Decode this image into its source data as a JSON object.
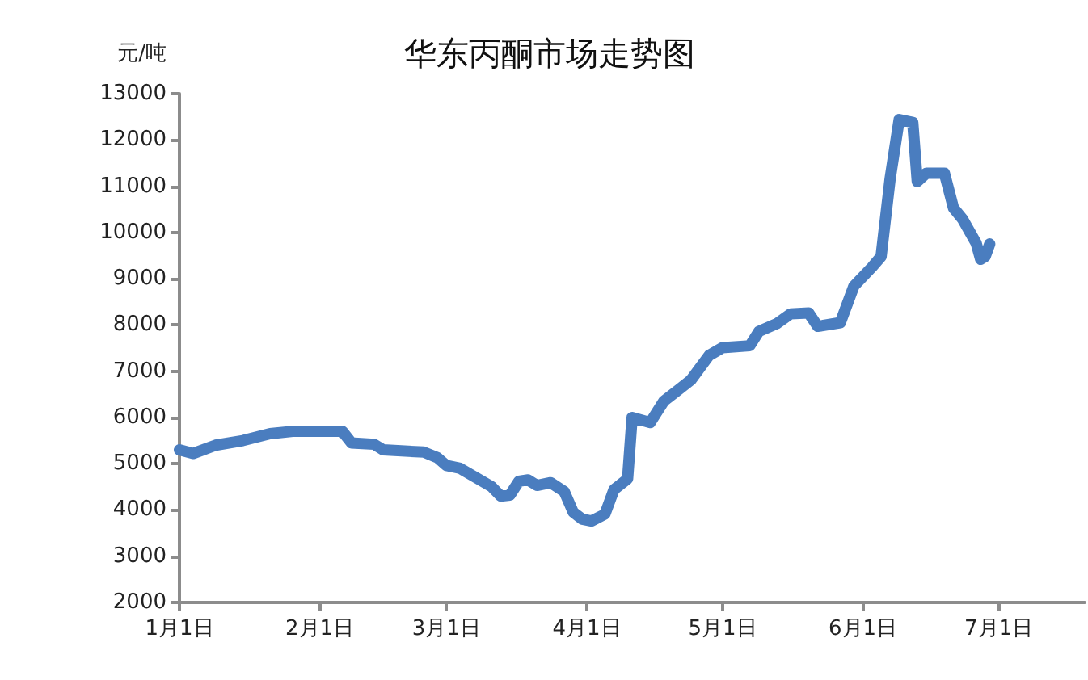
{
  "chart_data": {
    "type": "line",
    "title": "华东丙酮市场走势图",
    "ylabel": "元/吨",
    "x": [
      "--01-01",
      "--01-04",
      "--01-09",
      "--01-15",
      "--01-21",
      "--01-26",
      "--02-06",
      "--02-08",
      "--02-13",
      "--02-15",
      "--02-24",
      "--02-27",
      "--03-01",
      "--03-04",
      "--03-08",
      "--03-11",
      "--03-13",
      "--03-15",
      "--03-17",
      "--03-19",
      "--03-21",
      "--03-24",
      "--03-27",
      "--03-29",
      "--03-31",
      "--04-02",
      "--04-05",
      "--04-07",
      "--04-10",
      "--04-11",
      "--04-15",
      "--04-18",
      "--04-21",
      "--04-24",
      "--04-28",
      "--05-01",
      "--05-07",
      "--05-09",
      "--05-13",
      "--05-16",
      "--05-20",
      "--05-22",
      "--05-27",
      "--05-30",
      "--06-03",
      "--06-05",
      "--06-07",
      "--06-09",
      "--06-12",
      "--06-13",
      "--06-15",
      "--06-19",
      "--06-21",
      "--06-23",
      "--06-26",
      "--06-27",
      "--06-28",
      "--06-29"
    ],
    "series": [
      {
        "color": "#4a7dbf",
        "values": [
          5300,
          5220,
          5400,
          5500,
          5650,
          5700,
          5700,
          5450,
          5420,
          5300,
          5250,
          5130,
          4960,
          4900,
          4670,
          4500,
          4300,
          4320,
          4620,
          4650,
          4530,
          4590,
          4400,
          3950,
          3800,
          3760,
          3910,
          4440,
          4670,
          6000,
          5890,
          6350,
          6580,
          6810,
          7340,
          7510,
          7550,
          7860,
          8030,
          8240,
          8260,
          7970,
          8050,
          8840,
          9250,
          9480,
          11160,
          12440,
          12380,
          11100,
          11280,
          11280,
          10530,
          10290,
          9770,
          9420,
          9480,
          9750
        ]
      }
    ],
    "xlim": [
      "--01-01",
      "--07-20"
    ],
    "xticks": [
      {
        "value": "--01-01",
        "label": "1月1日"
      },
      {
        "value": "--02-01",
        "label": "2月1日"
      },
      {
        "value": "--03-01",
        "label": "3月1日"
      },
      {
        "value": "--04-01",
        "label": "4月1日"
      },
      {
        "value": "--05-01",
        "label": "5月1日"
      },
      {
        "value": "--06-01",
        "label": "6月1日"
      },
      {
        "value": "--07-01",
        "label": "7月1日"
      }
    ],
    "ylim": [
      2000,
      13000
    ],
    "yticks": [
      2000,
      3000,
      4000,
      5000,
      6000,
      7000,
      8000,
      9000,
      10000,
      11000,
      12000,
      13000
    ],
    "grid": false,
    "line_style": "solid"
  }
}
